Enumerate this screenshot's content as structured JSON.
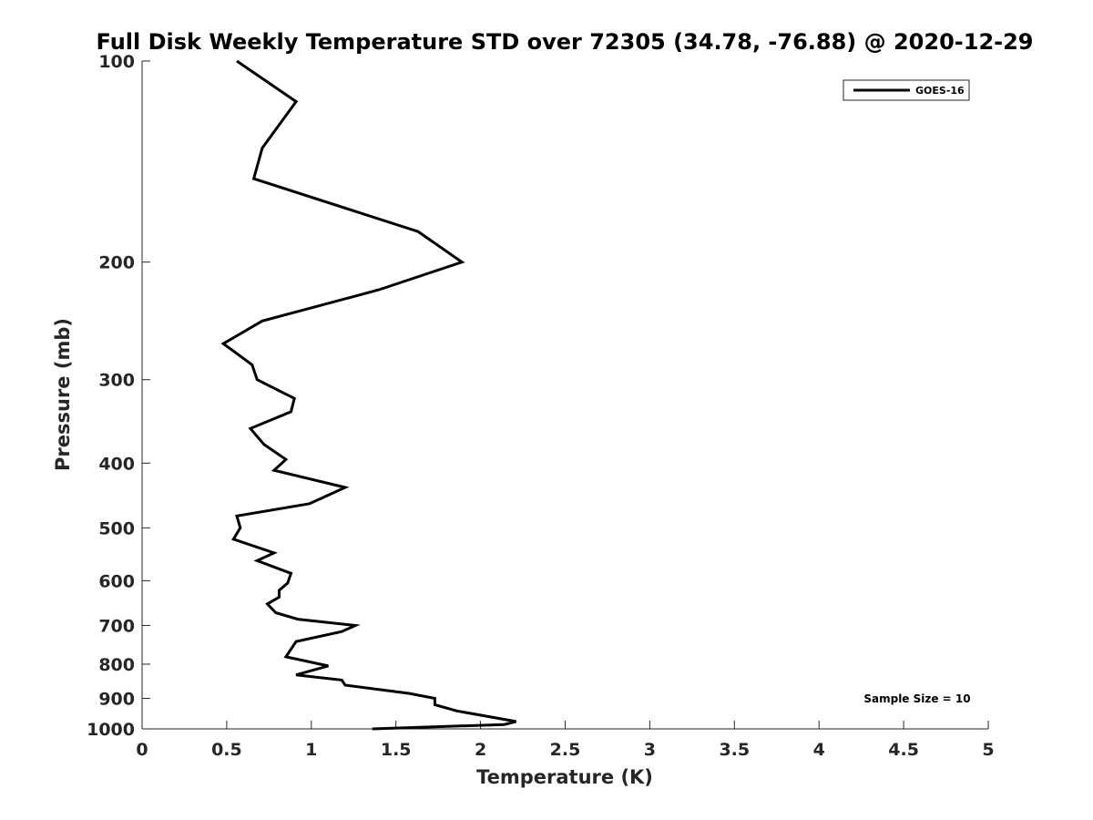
{
  "chart_data": {
    "type": "line",
    "title": "Full Disk Weekly Temperature STD over 72305 (34.78, -76.88) @ 2020-12-29",
    "xlabel": "Temperature (K)",
    "ylabel": "Pressure (mb)",
    "xlim": [
      0,
      5
    ],
    "ylim": [
      100,
      1000
    ],
    "y_scale": "log",
    "y_reversed": true,
    "x_ticks": [
      0,
      0.5,
      1,
      1.5,
      2,
      2.5,
      3,
      3.5,
      4,
      4.5,
      5
    ],
    "x_tick_labels": [
      "0",
      "0.5",
      "1",
      "1.5",
      "2",
      "2.5",
      "3",
      "3.5",
      "4",
      "4.5",
      "5"
    ],
    "y_ticks": [
      100,
      200,
      300,
      400,
      500,
      600,
      700,
      800,
      900,
      1000
    ],
    "y_tick_labels": [
      "100",
      "200",
      "300",
      "400",
      "500",
      "600",
      "700",
      "800",
      "900",
      "1000"
    ],
    "grid": false,
    "legend_position": "top-right",
    "annotation": "Sample Size = 10",
    "series": [
      {
        "name": "GOES-16",
        "color": "#000000",
        "points": [
          [
            0.56,
            100
          ],
          [
            0.91,
            115
          ],
          [
            0.71,
            135
          ],
          [
            0.66,
            150
          ],
          [
            1.63,
            180
          ],
          [
            1.89,
            200
          ],
          [
            1.4,
            220
          ],
          [
            0.71,
            245
          ],
          [
            0.48,
            265
          ],
          [
            0.65,
            285
          ],
          [
            0.68,
            300
          ],
          [
            0.9,
            320
          ],
          [
            0.88,
            335
          ],
          [
            0.64,
            355
          ],
          [
            0.72,
            375
          ],
          [
            0.85,
            395
          ],
          [
            0.78,
            410
          ],
          [
            1.2,
            435
          ],
          [
            0.99,
            460
          ],
          [
            0.56,
            480
          ],
          [
            0.58,
            500
          ],
          [
            0.54,
            520
          ],
          [
            0.78,
            545
          ],
          [
            0.68,
            560
          ],
          [
            0.88,
            585
          ],
          [
            0.86,
            605
          ],
          [
            0.81,
            620
          ],
          [
            0.81,
            635
          ],
          [
            0.74,
            650
          ],
          [
            0.79,
            670
          ],
          [
            0.92,
            685
          ],
          [
            1.26,
            700
          ],
          [
            1.18,
            715
          ],
          [
            0.91,
            740
          ],
          [
            0.85,
            780
          ],
          [
            1.1,
            805
          ],
          [
            0.91,
            830
          ],
          [
            1.18,
            845
          ],
          [
            1.2,
            860
          ],
          [
            1.58,
            885
          ],
          [
            1.73,
            900
          ],
          [
            1.73,
            920
          ],
          [
            1.86,
            940
          ],
          [
            2.21,
            975
          ],
          [
            2.14,
            985
          ],
          [
            1.36,
            1000
          ]
        ]
      }
    ]
  }
}
